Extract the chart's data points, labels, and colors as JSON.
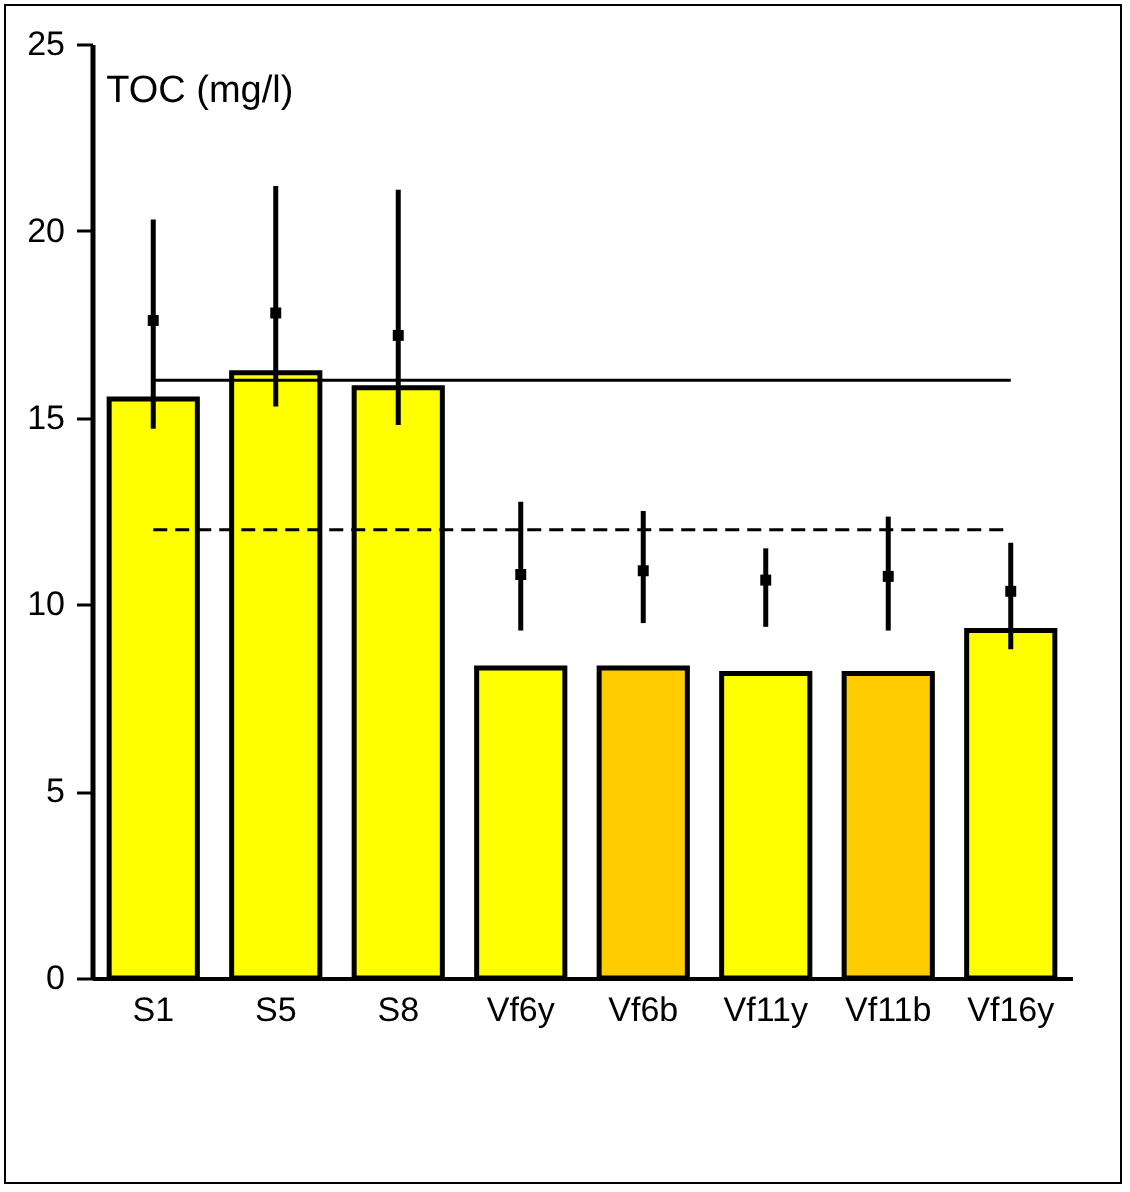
{
  "chart_data": {
    "type": "bar",
    "title": "TOC (mg/l)",
    "categories": [
      "S1",
      "S5",
      "S8",
      "Vf6y",
      "Vf6b",
      "Vf11y",
      "Vf11b",
      "Vf16y"
    ],
    "series": [
      {
        "type": "bar",
        "colors": [
          "#ffff00",
          "#ffff00",
          "#ffff00",
          "#ffff00",
          "#ffcc00",
          "#ffff00",
          "#ffcc00",
          "#ffff00"
        ],
        "values": [
          15.5,
          16.2,
          15.8,
          8.3,
          8.3,
          8.15,
          8.15,
          9.3
        ]
      },
      {
        "type": "scatter",
        "color": "#000000",
        "marker": "square",
        "values": [
          17.6,
          17.8,
          17.2,
          10.8,
          10.9,
          10.65,
          10.75,
          10.35
        ],
        "errors": [
          [
            14.7,
            20.3
          ],
          [
            15.3,
            21.2
          ],
          [
            14.8,
            21.1
          ],
          [
            9.3,
            12.75
          ],
          [
            9.5,
            12.5
          ],
          [
            9.4,
            11.5
          ],
          [
            9.3,
            12.35
          ],
          [
            8.8,
            11.65
          ]
        ]
      }
    ],
    "ylim": [
      0,
      25
    ],
    "yticks": [
      0,
      5,
      10,
      15,
      20,
      25
    ],
    "grid": false,
    "ref_lines": [
      {
        "axis": "y",
        "value": 16,
        "line_style": "solid"
      },
      {
        "axis": "y",
        "value": 12,
        "line_style": "dashed"
      }
    ]
  }
}
